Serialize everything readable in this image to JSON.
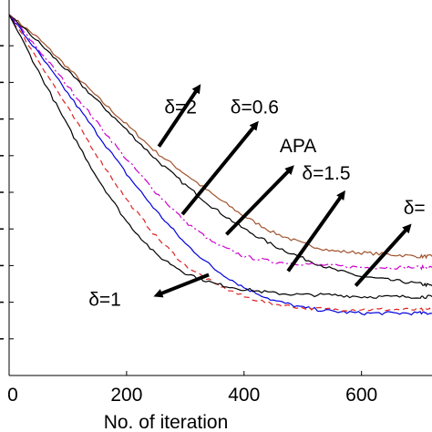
{
  "chart_data": {
    "type": "line",
    "title": "",
    "xlabel": "No. of iteration",
    "ylabel": "",
    "xlim": [
      0,
      720
    ],
    "ylim": [
      -1,
      9
    ],
    "xticks": [
      0,
      200,
      400,
      600
    ],
    "xtick_labels": [
      "0",
      "200",
      "400",
      "600"
    ],
    "yticks": [
      0,
      1,
      2,
      3,
      4,
      5,
      6,
      7,
      8
    ],
    "grid": false,
    "legend": "none",
    "series": [
      {
        "color": "#a0522d",
        "dash": "solid",
        "x": [
          0,
          50,
          100,
          150,
          200,
          250,
          300,
          350,
          400,
          450,
          500,
          550,
          600,
          650,
          700,
          720
        ],
        "y": [
          8.85,
          8.2,
          7.4,
          6.6,
          5.85,
          5.1,
          4.5,
          3.9,
          3.35,
          2.9,
          2.6,
          2.4,
          2.35,
          2.3,
          2.25,
          2.25
        ]
      },
      {
        "color": "#000000",
        "dash": "solid",
        "x": [
          0,
          50,
          100,
          150,
          200,
          250,
          300,
          350,
          400,
          450,
          500,
          550,
          600,
          650,
          700,
          720
        ],
        "y": [
          8.85,
          8.1,
          7.3,
          6.5,
          5.7,
          4.9,
          4.2,
          3.55,
          3.0,
          2.55,
          2.2,
          1.9,
          1.7,
          1.6,
          1.5,
          1.45
        ]
      },
      {
        "color": "#cc00cc",
        "dash": "dashdot",
        "x": [
          0,
          50,
          100,
          150,
          200,
          250,
          300,
          350,
          400,
          450,
          500,
          550,
          600,
          650,
          700,
          720
        ],
        "y": [
          8.85,
          7.9,
          6.9,
          5.9,
          4.9,
          4.0,
          3.2,
          2.6,
          2.25,
          2.1,
          2.05,
          2.0,
          1.95,
          1.95,
          1.95,
          1.95
        ]
      },
      {
        "color": "#0000dd",
        "dash": "solid",
        "x": [
          0,
          50,
          100,
          150,
          200,
          250,
          300,
          350,
          400,
          450,
          500,
          550,
          600,
          650,
          700,
          720
        ],
        "y": [
          8.85,
          7.8,
          6.7,
          5.6,
          4.5,
          3.5,
          2.6,
          1.9,
          1.4,
          1.05,
          0.85,
          0.75,
          0.7,
          0.7,
          0.7,
          0.7
        ]
      },
      {
        "color": "#dd2222",
        "dash": "dashed",
        "x": [
          0,
          50,
          100,
          150,
          200,
          250,
          300,
          350,
          400,
          450,
          500,
          550,
          600,
          650,
          700,
          720
        ],
        "y": [
          8.85,
          7.6,
          6.3,
          5.0,
          3.8,
          2.8,
          2.0,
          1.5,
          1.15,
          0.95,
          0.85,
          0.8,
          0.8,
          0.8,
          0.8,
          0.8
        ]
      },
      {
        "color": "#000000",
        "dash": "solid",
        "x": [
          0,
          50,
          100,
          150,
          200,
          250,
          300,
          350,
          400,
          450,
          500,
          550,
          600,
          650,
          700,
          720
        ],
        "y": [
          8.85,
          7.3,
          5.8,
          4.4,
          3.2,
          2.3,
          1.8,
          1.5,
          1.35,
          1.25,
          1.2,
          1.2,
          1.15,
          1.15,
          1.15,
          1.15
        ]
      }
    ],
    "annotations": [
      {
        "text": "δ=2",
        "x": 292,
        "y": 6.15,
        "arrow_from": [
          255,
          5.25
        ],
        "arrow_to": [
          322,
          6.85
        ]
      },
      {
        "text": "δ=0.6",
        "x": 418,
        "y": 6.15,
        "arrow_from": [
          295,
          3.4
        ],
        "arrow_to": [
          420,
          5.85
        ]
      },
      {
        "text": "APA",
        "x": 492,
        "y": 5.1,
        "arrow_from": [
          370,
          2.85
        ],
        "arrow_to": [
          480,
          4.65
        ]
      },
      {
        "text": "δ=1.5",
        "x": 540,
        "y": 4.35,
        "arrow_from": [
          475,
          1.85
        ],
        "arrow_to": [
          568,
          3.95
        ]
      },
      {
        "text": "δ=",
        "x": 690,
        "y": 3.4,
        "arrow_from": [
          590,
          1.45
        ],
        "arrow_to": [
          680,
          3.05
        ]
      },
      {
        "text": "δ=1",
        "x": 163,
        "y": 0.9,
        "arrow_from": [
          340,
          1.75
        ],
        "arrow_to": [
          253,
          1.2
        ]
      }
    ]
  }
}
